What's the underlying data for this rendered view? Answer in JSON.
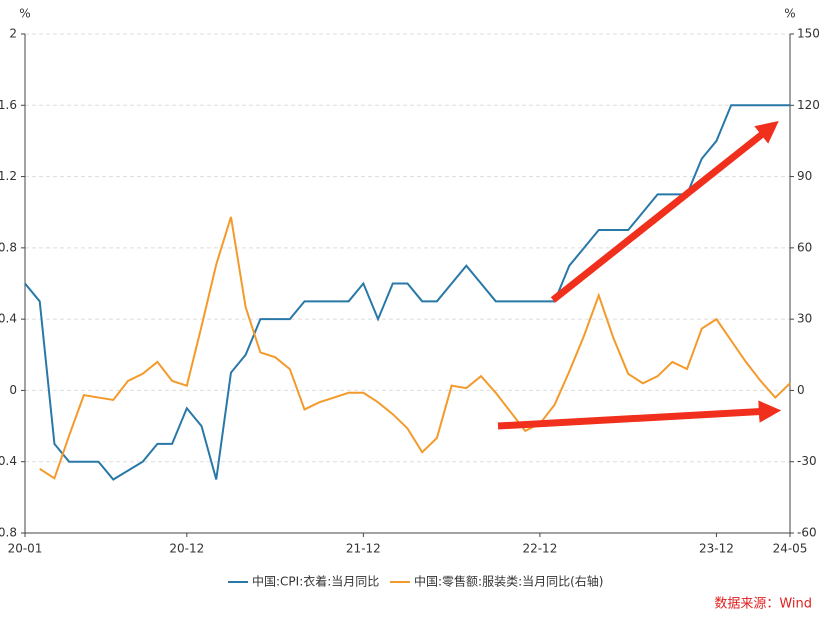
{
  "chart_data": {
    "type": "line",
    "y_unit": "%",
    "y2_unit": "%",
    "categories": [
      "20-01",
      null,
      null,
      null,
      null,
      null,
      null,
      null,
      null,
      null,
      null,
      "20-12",
      null,
      null,
      null,
      null,
      null,
      null,
      null,
      null,
      null,
      null,
      null,
      "21-12",
      null,
      null,
      null,
      null,
      null,
      null,
      null,
      null,
      null,
      null,
      null,
      "22-12",
      null,
      null,
      null,
      null,
      null,
      null,
      null,
      null,
      null,
      null,
      null,
      "23-12",
      null,
      null,
      null,
      null,
      "24-05"
    ],
    "series": [
      {
        "name": "中国:CPI:衣着:当月同比",
        "color": "#2878a8",
        "axis": "y",
        "values": [
          0.6,
          0.5,
          -0.3,
          -0.4,
          -0.4,
          -0.4,
          -0.5,
          -0.45,
          -0.4,
          -0.3,
          -0.3,
          -0.1,
          -0.2,
          -0.5,
          0.1,
          0.2,
          0.4,
          0.4,
          0.4,
          0.5,
          0.5,
          0.5,
          0.5,
          0.6,
          0.4,
          0.6,
          0.6,
          0.5,
          0.5,
          0.6,
          0.7,
          0.6,
          0.5,
          0.5,
          0.5,
          0.5,
          0.5,
          0.7,
          0.8,
          0.9,
          0.9,
          0.9,
          1.0,
          1.1,
          1.1,
          1.1,
          1.3,
          1.4,
          1.6,
          1.6,
          1.6,
          1.6,
          1.6
        ]
      },
      {
        "name": "中国:零售额:服装类:当月同比(右轴)",
        "color": "#f39a2b",
        "axis": "y2",
        "values": [
          null,
          -33,
          -37,
          -19,
          -2,
          -3,
          -4,
          4,
          7,
          12,
          4,
          2,
          27,
          53,
          73,
          35,
          16,
          14,
          9,
          -8,
          -5,
          -3,
          -1,
          -1,
          -5,
          -10,
          -16,
          -26,
          -20,
          2,
          1,
          6,
          -1,
          -9,
          -17,
          -14,
          -6,
          8,
          23,
          40,
          22,
          7,
          3,
          6,
          12,
          9,
          26,
          30,
          21,
          12,
          4,
          -3,
          3
        ]
      }
    ],
    "ylim": [
      -0.8,
      2
    ],
    "yticks": [
      -0.8,
      -0.4,
      0,
      0.4,
      0.8,
      1.2,
      1.6,
      2
    ],
    "y2lim": [
      -60,
      150
    ],
    "y2ticks": [
      -60,
      -30,
      0,
      30,
      60,
      90,
      120,
      150
    ],
    "grid": true,
    "source": "数据来源：Wind"
  }
}
